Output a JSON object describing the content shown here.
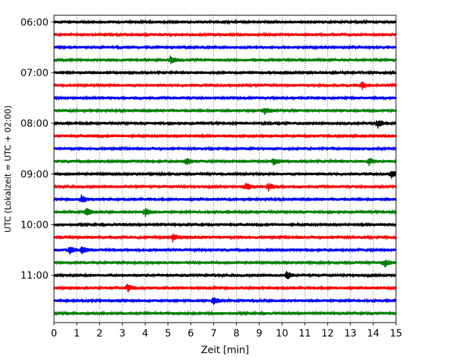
{
  "chart_data": {
    "type": "line",
    "title": "",
    "xlabel": "Zeit  [min]",
    "ylabel": "UTC (Lokalzeit = UTC + 02:00)",
    "xlim": [
      0,
      15
    ],
    "x_ticks": [
      0,
      1,
      2,
      3,
      4,
      5,
      6,
      7,
      8,
      9,
      10,
      11,
      12,
      13,
      14,
      15
    ],
    "x_tick_labels": [
      "0",
      "1",
      "2",
      "3",
      "4",
      "5",
      "6",
      "7",
      "8",
      "9",
      "10",
      "11",
      "12",
      "13",
      "14",
      "15"
    ],
    "ylim": [
      "05:52",
      "11:56"
    ],
    "y_ticks": [
      "06:00",
      "07:00",
      "08:00",
      "09:00",
      "10:00",
      "11:00"
    ],
    "grid": "vertical dotted lines at each minute",
    "trace_interval_min": 15,
    "color_cycle": [
      "#000000",
      "#ff0000",
      "#0000ff",
      "#008000"
    ],
    "traces": [
      {
        "start": "06:00",
        "color": "#000000"
      },
      {
        "start": "06:15",
        "color": "#ff0000"
      },
      {
        "start": "06:30",
        "color": "#0000ff"
      },
      {
        "start": "06:45",
        "color": "#008000",
        "events_min": [
          5.1
        ]
      },
      {
        "start": "07:00",
        "color": "#000000"
      },
      {
        "start": "07:15",
        "color": "#ff0000",
        "events_min": [
          13.5
        ]
      },
      {
        "start": "07:30",
        "color": "#0000ff"
      },
      {
        "start": "07:45",
        "color": "#008000",
        "events_min": [
          9.2
        ]
      },
      {
        "start": "08:00",
        "color": "#000000",
        "events_min": [
          14.2
        ]
      },
      {
        "start": "08:15",
        "color": "#ff0000"
      },
      {
        "start": "08:30",
        "color": "#0000ff"
      },
      {
        "start": "08:45",
        "color": "#008000",
        "events_min": [
          5.8,
          9.6,
          13.8
        ]
      },
      {
        "start": "09:00",
        "color": "#000000",
        "events_min": [
          14.8
        ]
      },
      {
        "start": "09:15",
        "color": "#ff0000",
        "events_min": [
          8.4,
          9.4
        ]
      },
      {
        "start": "09:30",
        "color": "#0000ff",
        "events_min": [
          1.2
        ]
      },
      {
        "start": "09:45",
        "color": "#008000",
        "events_min": [
          1.4,
          4.0
        ]
      },
      {
        "start": "10:00",
        "color": "#000000"
      },
      {
        "start": "10:15",
        "color": "#ff0000",
        "events_min": [
          5.2
        ]
      },
      {
        "start": "10:30",
        "color": "#0000ff",
        "events_min": [
          0.7,
          1.2
        ]
      },
      {
        "start": "10:45",
        "color": "#008000",
        "events_min": [
          14.5
        ]
      },
      {
        "start": "11:00",
        "color": "#000000",
        "events_min": [
          10.2
        ]
      },
      {
        "start": "11:15",
        "color": "#ff0000",
        "events_min": [
          3.2
        ]
      },
      {
        "start": "11:30",
        "color": "#0000ff",
        "events_min": [
          7.0
        ]
      },
      {
        "start": "11:45",
        "color": "#008000"
      }
    ]
  }
}
